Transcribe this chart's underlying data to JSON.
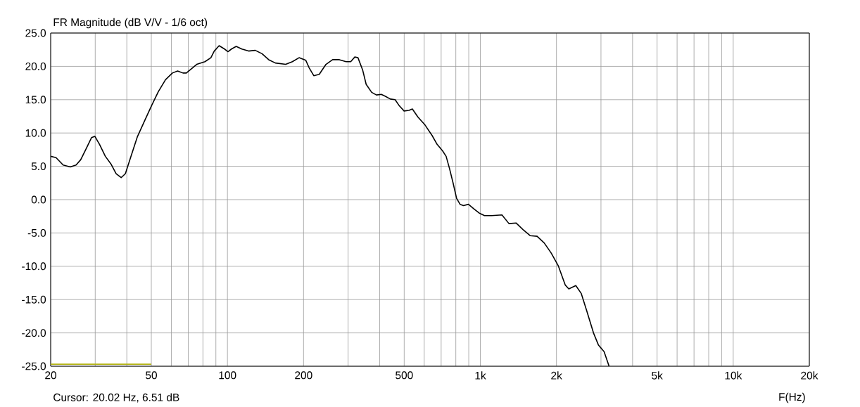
{
  "chart_data": {
    "type": "line",
    "title": "FR Magnitude (dB V/V - 1/6 oct)",
    "xlabel": "F(Hz)",
    "log": "x",
    "grid": true,
    "marker": "none",
    "line_style": "solid",
    "annotations": [
      "Cursor: 20.02 Hz, 6.51 dB"
    ],
    "xlim": [
      20,
      20000
    ],
    "ylim": [
      -25,
      25
    ],
    "xticks": [
      20,
      {
        "value": 30,
        "label": null
      },
      {
        "value": 40,
        "label": null
      },
      50,
      {
        "value": 60,
        "label": null
      },
      {
        "value": 70,
        "label": null
      },
      {
        "value": 80,
        "label": null
      },
      {
        "value": 90,
        "label": null
      },
      100,
      200,
      {
        "value": 300,
        "label": null
      },
      {
        "value": 400,
        "label": null
      },
      500,
      {
        "value": 600,
        "label": null
      },
      {
        "value": 700,
        "label": null
      },
      {
        "value": 800,
        "label": null
      },
      {
        "value": 900,
        "label": null
      },
      {
        "value": 1000,
        "label": "1k"
      },
      {
        "value": 2000,
        "label": "2k"
      },
      {
        "value": 3000,
        "label": null
      },
      {
        "value": 4000,
        "label": null
      },
      {
        "value": 5000,
        "label": "5k"
      },
      {
        "value": 6000,
        "label": null
      },
      {
        "value": 7000,
        "label": null
      },
      {
        "value": 8000,
        "label": null
      },
      {
        "value": 9000,
        "label": null
      },
      {
        "value": 10000,
        "label": "10k"
      },
      {
        "value": 20000,
        "label": "20k"
      }
    ],
    "yticks": [
      {
        "value": -25,
        "label": "-25.0"
      },
      {
        "value": -20,
        "label": "-20.0"
      },
      {
        "value": -15,
        "label": "-15.0"
      },
      {
        "value": -10,
        "label": "-10.0"
      },
      {
        "value": -5,
        "label": "-5.0"
      },
      {
        "value": 0,
        "label": "0.0"
      },
      {
        "value": 5,
        "label": "5.0"
      },
      {
        "value": 10,
        "label": "10.0"
      },
      {
        "value": 15,
        "label": "15.0"
      },
      {
        "value": 20,
        "label": "20.0"
      },
      {
        "value": 25,
        "label": "25.0"
      }
    ],
    "series": [
      {
        "color": "#000000",
        "x": [
          20,
          21,
          22.4,
          23.9,
          25.2,
          26.3,
          27.6,
          29,
          29.9,
          31.2,
          32.9,
          34.7,
          36.3,
          38,
          39.5,
          41.3,
          44,
          47,
          50.1,
          53.3,
          56.9,
          60.6,
          63.5,
          66.7,
          68.8,
          71.9,
          75.6,
          81.5,
          86,
          88.7,
          92.7,
          97.4,
          100.5,
          103.7,
          108.3,
          114,
          121.2,
          128.8,
          137,
          145.6,
          154.7,
          170,
          180.6,
          192,
          204.1,
          210.3,
          219.5,
          230.7,
          245.3,
          260.6,
          277,
          294.5,
          307.2,
          318.9,
          328.2,
          342.8,
          353.7,
          371.9,
          388.3,
          405.9,
          421.3,
          440.4,
          460.3,
          477.8,
          499.5,
          522.2,
          538.6,
          566.5,
          604.6,
          645.2,
          674.7,
          709.7,
          732.5,
          756.2,
          780.3,
          805.6,
          831.6,
          858.4,
          897.3,
          944.8,
          988.4,
          1039,
          1107,
          1218,
          1298,
          1384,
          1475,
          1573,
          1677,
          1789,
          1906,
          2032,
          2166,
          2238,
          2386,
          2508,
          2626,
          2802,
          2930,
          3086,
          3230
        ],
        "values": [
          6.5,
          6.3,
          5.2,
          4.9,
          5.2,
          6.0,
          7.6,
          9.3,
          9.5,
          8.3,
          6.5,
          5.3,
          3.9,
          3.3,
          3.9,
          6.2,
          9.4,
          11.8,
          14.1,
          16.2,
          18.0,
          19.0,
          19.3,
          19.0,
          19.0,
          19.6,
          20.3,
          20.7,
          21.3,
          22.3,
          23.1,
          22.6,
          22.2,
          22.6,
          23.0,
          22.6,
          22.3,
          22.4,
          21.9,
          21.0,
          20.5,
          20.3,
          20.7,
          21.3,
          20.9,
          19.8,
          18.6,
          18.8,
          20.3,
          21.0,
          21.0,
          20.7,
          20.7,
          21.4,
          21.3,
          19.4,
          17.3,
          16.1,
          15.7,
          15.8,
          15.5,
          15.1,
          15.0,
          14.1,
          13.3,
          13.4,
          13.6,
          12.4,
          11.2,
          9.6,
          8.3,
          7.3,
          6.5,
          4.6,
          2.5,
          0.2,
          -0.7,
          -0.9,
          -0.7,
          -1.4,
          -2.0,
          -2.4,
          -2.4,
          -2.3,
          -3.6,
          -3.5,
          -4.5,
          -5.4,
          -5.5,
          -6.5,
          -8.0,
          -9.9,
          -12.8,
          -13.4,
          -12.9,
          -14.1,
          -16.5,
          -20.0,
          -21.8,
          -22.8,
          -25.0
        ]
      },
      {
        "color": "#b4b414",
        "x": [
          20,
          50
        ],
        "values": [
          -24.7,
          -24.7
        ]
      }
    ]
  }
}
